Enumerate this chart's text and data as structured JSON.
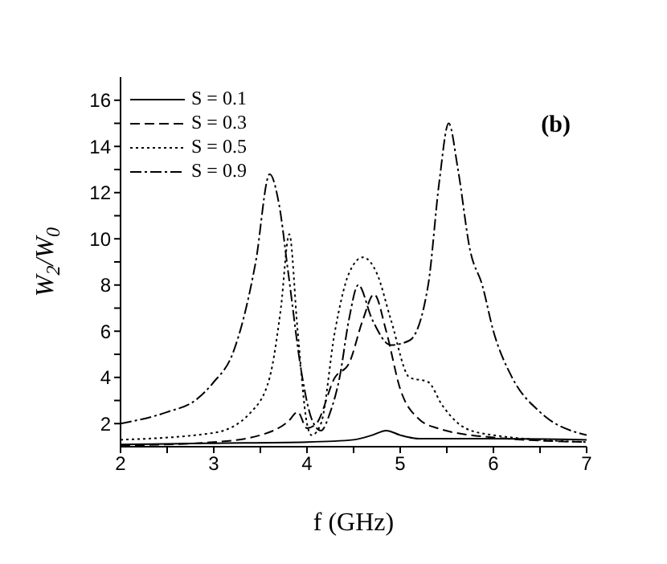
{
  "chart_data": {
    "type": "line",
    "xlabel": "f (GHz)",
    "ylabel": "W$_{2}$/W$_{0}$",
    "annotations": [
      "(b)"
    ],
    "xlim": [
      2,
      7
    ],
    "xticks": [
      2,
      {
        "value": 2.5,
        "label": null
      },
      3,
      {
        "value": 3.5,
        "label": null
      },
      4,
      {
        "value": 4.5,
        "label": null
      },
      5,
      {
        "value": 5.5,
        "label": null
      },
      6,
      {
        "value": 6.5,
        "label": null
      },
      7
    ],
    "ylim": [
      1,
      17
    ],
    "yticks": [
      2,
      {
        "value": 3,
        "label": null
      },
      4,
      {
        "value": 5,
        "label": null
      },
      6,
      {
        "value": 7,
        "label": null
      },
      8,
      {
        "value": 9,
        "label": null
      },
      10,
      {
        "value": 11,
        "label": null
      },
      12,
      {
        "value": 13,
        "label": null
      },
      14,
      {
        "value": 15,
        "label": null
      },
      16
    ],
    "legend": "top left",
    "series": [
      {
        "name": "S = 0.1",
        "color": "#000000",
        "line_style": "solid",
        "x": [
          2,
          3,
          4,
          4.5,
          4.7,
          4.85,
          5.0,
          5.2,
          6,
          7
        ],
        "values": [
          1.1,
          1.15,
          1.2,
          1.3,
          1.5,
          1.7,
          1.5,
          1.35,
          1.35,
          1.3
        ]
      },
      {
        "name": "S = 0.3",
        "color": "#000000",
        "line_style": "dashed",
        "x": [
          2,
          3,
          3.5,
          3.8,
          3.9,
          4.0,
          4.1,
          4.3,
          4.45,
          4.6,
          4.72,
          4.85,
          5.0,
          5.2,
          5.4,
          6,
          7
        ],
        "values": [
          1.05,
          1.2,
          1.5,
          2.1,
          2.5,
          1.8,
          2.0,
          4.0,
          4.6,
          6.5,
          7.6,
          6.0,
          3.5,
          2.2,
          1.8,
          1.4,
          1.2
        ]
      },
      {
        "name": "S = 0.5",
        "color": "#000000",
        "line_style": "dotted",
        "x": [
          2,
          3,
          3.4,
          3.6,
          3.72,
          3.81,
          3.9,
          4.0,
          4.05,
          4.15,
          4.3,
          4.45,
          4.6,
          4.75,
          4.9,
          5.1,
          5.3,
          5.45,
          5.7,
          6,
          7
        ],
        "values": [
          1.3,
          1.6,
          2.5,
          4.0,
          7.0,
          10.2,
          6.0,
          2.0,
          1.5,
          2.0,
          6.0,
          8.5,
          9.2,
          8.5,
          6.5,
          4.0,
          3.8,
          2.8,
          1.8,
          1.5,
          1.2
        ]
      },
      {
        "name": "S = 0.9",
        "color": "#000000",
        "line_style": "dashdot",
        "x": [
          2,
          2.5,
          2.8,
          3.0,
          3.2,
          3.45,
          3.6,
          3.7,
          3.8,
          3.95,
          4.05,
          4.15,
          4.25,
          4.35,
          4.45,
          4.55,
          4.7,
          4.9,
          5.1,
          5.3,
          5.42,
          5.52,
          5.62,
          5.75,
          5.88,
          6.0,
          6.2,
          6.5,
          7
        ],
        "values": [
          2.0,
          2.5,
          3.0,
          3.8,
          5.0,
          9.0,
          12.8,
          11.5,
          8.5,
          4.0,
          2.2,
          1.7,
          2.5,
          4.0,
          6.5,
          8.0,
          6.5,
          5.4,
          5.6,
          8.0,
          12.5,
          15.0,
          13.0,
          9.5,
          8.0,
          6.0,
          4.0,
          2.5,
          1.5
        ]
      }
    ]
  }
}
